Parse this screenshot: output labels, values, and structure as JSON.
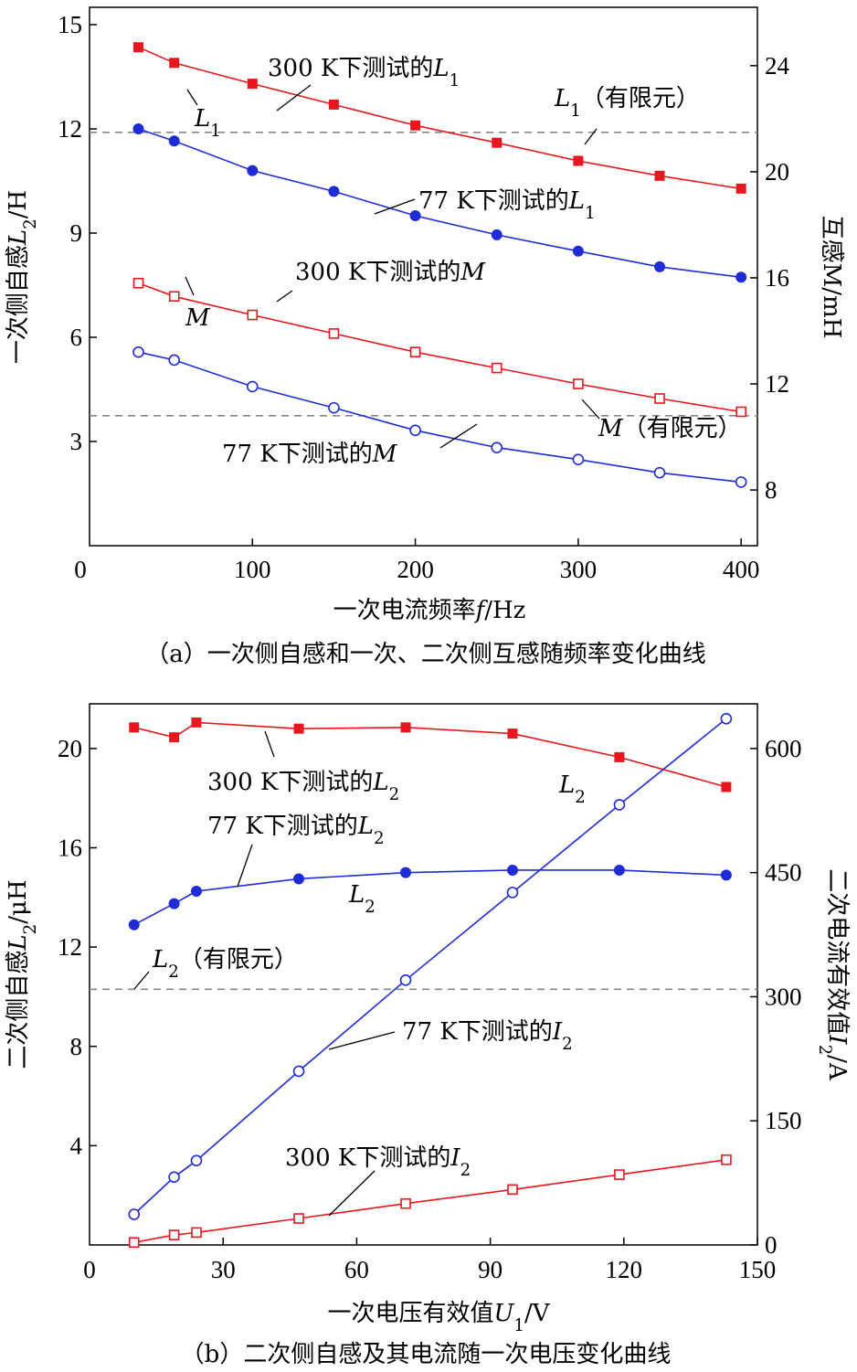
{
  "chart_data": [
    {
      "type": "line",
      "caption": "（a）一次侧自感和一次、二次侧互感随频率变化曲线",
      "xlabel": "一次电流频率f/Hz",
      "ylabel": "一次侧自感L2/H",
      "y2label": "互感M/mH",
      "xlim": [
        0,
        410
      ],
      "ylim": [
        0,
        15.5
      ],
      "y2lim": [
        5.9,
        26.2
      ],
      "xticks": [
        "0",
        "100",
        "200",
        "300",
        "400"
      ],
      "yticks": [
        "3",
        "6",
        "9",
        "12",
        "15"
      ],
      "y2ticks": [
        "8",
        "12",
        "16",
        "20",
        "24"
      ],
      "series": [
        {
          "name": "300 K下测试的L1",
          "axis": "left",
          "color": "#e8161e",
          "marker": "square-filled",
          "x": [
            30,
            52,
            100,
            150,
            200,
            250,
            300,
            350,
            400
          ],
          "y": [
            14.35,
            13.9,
            13.3,
            12.7,
            12.1,
            11.6,
            11.08,
            10.65,
            10.28
          ]
        },
        {
          "name": "77 K下测试的L1",
          "axis": "left",
          "color": "#1f2bd6",
          "marker": "circle-filled",
          "x": [
            30,
            52,
            100,
            150,
            200,
            250,
            300,
            350,
            400
          ],
          "y": [
            12.0,
            11.65,
            10.8,
            10.2,
            9.5,
            8.95,
            8.48,
            8.03,
            7.73
          ]
        },
        {
          "name": "300 K下测试的M",
          "axis": "right",
          "color": "#e8161e",
          "marker": "square-open",
          "x": [
            30,
            52,
            100,
            150,
            200,
            250,
            300,
            350,
            400
          ],
          "y": [
            15.8,
            15.3,
            14.6,
            13.9,
            13.2,
            12.6,
            12.0,
            11.45,
            10.95
          ]
        },
        {
          "name": "77 K下测试的M",
          "axis": "right",
          "color": "#1f2bd6",
          "marker": "circle-open",
          "x": [
            30,
            52,
            100,
            150,
            200,
            250,
            300,
            350,
            400
          ],
          "y": [
            13.2,
            12.9,
            11.9,
            11.1,
            10.25,
            9.6,
            9.15,
            8.65,
            8.3
          ]
        }
      ],
      "reference_lines": [
        {
          "label": "L1（有限元）",
          "axis": "left",
          "y": 11.9
        },
        {
          "label": "M（有限元）",
          "axis": "right",
          "y": 10.8
        }
      ],
      "annotations": [
        {
          "id": "a1",
          "parts": [
            [
              "300 K下测试的",
              "n"
            ],
            [
              "L",
              "i"
            ],
            [
              "1",
              "sub"
            ]
          ]
        },
        {
          "id": "a2",
          "parts": [
            [
              "L",
              "i"
            ],
            [
              "1",
              "sub"
            ],
            [
              "（有限元）",
              "n"
            ]
          ]
        },
        {
          "id": "a3",
          "parts": [
            [
              "L",
              "i"
            ],
            [
              "1",
              "sub"
            ]
          ]
        },
        {
          "id": "a4",
          "parts": [
            [
              "77 K下测试的",
              "n"
            ],
            [
              "L",
              "i"
            ],
            [
              "1",
              "sub"
            ]
          ]
        },
        {
          "id": "a5",
          "parts": [
            [
              "300 K下测试的",
              "n"
            ],
            [
              "M",
              "i"
            ]
          ]
        },
        {
          "id": "a6",
          "parts": [
            [
              "M",
              "i"
            ]
          ]
        },
        {
          "id": "a7",
          "parts": [
            [
              "M",
              "i"
            ],
            [
              "（有限元）",
              "n"
            ]
          ]
        },
        {
          "id": "a8",
          "parts": [
            [
              "77 K下测试的",
              "n"
            ],
            [
              "M",
              "i"
            ]
          ]
        }
      ]
    },
    {
      "type": "line",
      "caption": "（b）二次侧自感及其电流随一次电压变化曲线",
      "xlabel": "一次电压有效值U1/V",
      "ylabel": "二次侧自感L2/μH",
      "y2label": "二次电流有效值I2/A",
      "xlim": [
        0,
        150
      ],
      "ylim": [
        0,
        21.8
      ],
      "y2lim": [
        0,
        654
      ],
      "xticks": [
        "0",
        "30",
        "60",
        "90",
        "120",
        "150"
      ],
      "yticks": [
        "4",
        "8",
        "12",
        "16",
        "20"
      ],
      "y2ticks": [
        "0",
        "150",
        "300",
        "450",
        "600"
      ],
      "series": [
        {
          "name": "300 K下测试的L2",
          "axis": "left",
          "color": "#e8161e",
          "marker": "square-filled",
          "x": [
            10,
            19,
            24,
            47,
            71,
            95,
            119,
            143
          ],
          "y": [
            20.85,
            20.45,
            21.05,
            20.8,
            20.85,
            20.6,
            19.65,
            18.45
          ]
        },
        {
          "name": "77 K下测试的L2",
          "axis": "left",
          "color": "#1f2bd6",
          "marker": "circle-filled",
          "x": [
            10,
            19,
            24,
            47,
            71,
            95,
            119,
            143
          ],
          "y": [
            12.9,
            13.75,
            14.25,
            14.75,
            15.0,
            15.1,
            15.1,
            14.9
          ]
        },
        {
          "name": "77 K下测试的I2",
          "axis": "right",
          "color": "#1f2bd6",
          "marker": "circle-open",
          "x": [
            10,
            19,
            24,
            47,
            71,
            95,
            119,
            143
          ],
          "y": [
            37,
            82,
            102,
            210,
            320,
            426,
            532,
            636
          ]
        },
        {
          "name": "300 K下测试的I2",
          "axis": "right",
          "color": "#e8161e",
          "marker": "square-open",
          "x": [
            10,
            19,
            24,
            47,
            71,
            95,
            119,
            143
          ],
          "y": [
            3,
            12,
            15,
            32,
            50,
            67,
            85,
            103
          ]
        }
      ],
      "reference_lines": [
        {
          "label": "L2（有限元）",
          "axis": "left",
          "y": 10.3
        }
      ],
      "annotations": [
        {
          "id": "b1",
          "parts": [
            [
              "300 K下测试的",
              "n"
            ],
            [
              "L",
              "i"
            ],
            [
              "2",
              "sub"
            ]
          ]
        },
        {
          "id": "b2",
          "parts": [
            [
              "L",
              "i"
            ],
            [
              "2",
              "sub"
            ]
          ]
        },
        {
          "id": "b3",
          "parts": [
            [
              "77 K下测试的",
              "n"
            ],
            [
              "L",
              "i"
            ],
            [
              "2",
              "sub"
            ]
          ]
        },
        {
          "id": "b4",
          "parts": [
            [
              "L",
              "i"
            ],
            [
              "2",
              "sub"
            ]
          ]
        },
        {
          "id": "b5",
          "parts": [
            [
              "L",
              "i"
            ],
            [
              "2",
              "sub"
            ],
            [
              "（有限元）",
              "n"
            ]
          ]
        },
        {
          "id": "b6",
          "parts": [
            [
              "77 K下测试的",
              "n"
            ],
            [
              "I",
              "i"
            ],
            [
              "2",
              "sub"
            ]
          ]
        },
        {
          "id": "b7",
          "parts": [
            [
              "300 K下测试的",
              "n"
            ],
            [
              "I",
              "i"
            ],
            [
              "2",
              "sub"
            ]
          ]
        }
      ]
    }
  ]
}
